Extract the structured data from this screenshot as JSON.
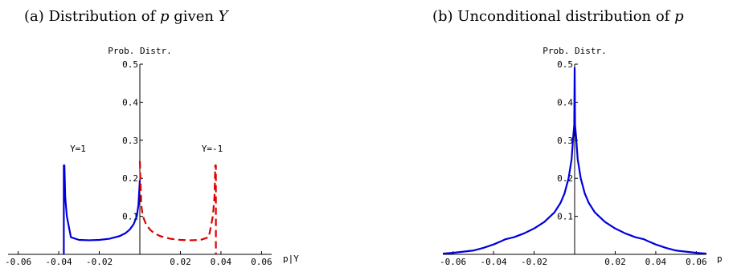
{
  "chart_data": [
    {
      "type": "line",
      "title_prefix": "(a) Distribution of ",
      "title_var1": "p",
      "title_mid": " given ",
      "title_var2": "Y",
      "xlabel": "p|Y",
      "ylabel": "Prob. Distr.",
      "xlim": [
        -0.065,
        0.065
      ],
      "ylim": [
        0,
        0.5
      ],
      "x_ticks": [
        -0.06,
        -0.04,
        -0.02,
        0.02,
        0.04,
        0.06
      ],
      "x_tick_labels": [
        "-0.06",
        "-0.04",
        "-0.02",
        "0.02",
        "0.04",
        "0.06"
      ],
      "y_ticks": [
        0.1,
        0.2,
        0.3,
        0.4,
        0.5
      ],
      "y_tick_labels": [
        "0.1",
        "0.2",
        "0.3",
        "0.4",
        "0.5"
      ],
      "annotations": [
        {
          "text": "Y=1",
          "x": -0.037,
          "y": 0.255
        },
        {
          "text": "Y=-1",
          "x": 0.036,
          "y": 0.255
        }
      ],
      "series": [
        {
          "name": "Y=1",
          "color": "#0000dd",
          "dash": "solid",
          "x": [
            -0.0375,
            -0.0375,
            -0.0372,
            -0.0368,
            -0.036,
            -0.034,
            -0.03,
            -0.025,
            -0.02,
            -0.015,
            -0.01,
            -0.007,
            -0.005,
            -0.003,
            -0.0015,
            -0.0007,
            0.0
          ],
          "y": [
            0.0,
            0.234,
            0.234,
            0.15,
            0.1,
            0.045,
            0.038,
            0.037,
            0.038,
            0.041,
            0.048,
            0.056,
            0.065,
            0.08,
            0.1,
            0.13,
            0.195
          ]
        },
        {
          "name": "Y=-1",
          "color": "#dd0000",
          "dash": "dashed",
          "x": [
            0.0,
            0.0007,
            0.0015,
            0.003,
            0.005,
            0.007,
            0.01,
            0.015,
            0.02,
            0.025,
            0.03,
            0.034,
            0.036,
            0.0368,
            0.0372,
            0.0375,
            0.0375
          ],
          "y": [
            0.245,
            0.13,
            0.1,
            0.08,
            0.065,
            0.056,
            0.048,
            0.041,
            0.038,
            0.037,
            0.038,
            0.045,
            0.1,
            0.15,
            0.234,
            0.234,
            0.0
          ]
        }
      ]
    },
    {
      "type": "line",
      "title_prefix": "(b) Unconditional distribution of ",
      "title_var1": "p",
      "xlabel": "p",
      "ylabel": "Prob. Distr.",
      "xlim": [
        -0.065,
        0.065
      ],
      "ylim": [
        0,
        0.5
      ],
      "x_ticks": [
        -0.06,
        -0.04,
        -0.02,
        0.02,
        0.04,
        0.06
      ],
      "x_tick_labels": [
        "-0.06",
        "-0.04",
        "-0.02",
        "0.02",
        "0.04",
        "0.06"
      ],
      "y_ticks": [
        0.1,
        0.2,
        0.3,
        0.4,
        0.5
      ],
      "y_tick_labels": [
        "0.1",
        "0.2",
        "0.3",
        "0.4",
        "0.5"
      ],
      "series": [
        {
          "color": "#0000dd",
          "dash": "solid",
          "x": [
            -0.065,
            -0.06,
            -0.05,
            -0.045,
            -0.04,
            -0.036,
            -0.034,
            -0.03,
            -0.025,
            -0.02,
            -0.015,
            -0.01,
            -0.007,
            -0.005,
            -0.003,
            -0.0015,
            -0.0007,
            -0.0002,
            0.0,
            0.0002,
            0.0007,
            0.0015,
            0.003,
            0.005,
            0.007,
            0.01,
            0.015,
            0.02,
            0.025,
            0.03,
            0.034,
            0.036,
            0.04,
            0.045,
            0.05,
            0.06,
            0.065
          ],
          "y": [
            0.002,
            0.004,
            0.01,
            0.017,
            0.026,
            0.035,
            0.04,
            0.045,
            0.055,
            0.068,
            0.085,
            0.11,
            0.135,
            0.16,
            0.2,
            0.25,
            0.31,
            0.34,
            0.49,
            0.34,
            0.31,
            0.25,
            0.2,
            0.16,
            0.135,
            0.11,
            0.085,
            0.068,
            0.055,
            0.045,
            0.04,
            0.035,
            0.026,
            0.017,
            0.01,
            0.004,
            0.002
          ]
        }
      ]
    }
  ]
}
